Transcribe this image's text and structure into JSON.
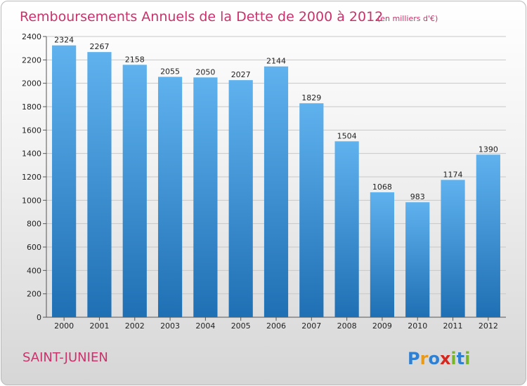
{
  "chart_data": {
    "type": "bar",
    "title": "Remboursements Annuels de la Dette de 2000 à 2012",
    "subtitle": "(en milliers d'€)",
    "categories": [
      "2000",
      "2001",
      "2002",
      "2003",
      "2004",
      "2005",
      "2006",
      "2007",
      "2008",
      "2009",
      "2010",
      "2011",
      "2012"
    ],
    "values": [
      2324,
      2267,
      2158,
      2055,
      2050,
      2027,
      2144,
      1829,
      1504,
      1068,
      983,
      1174,
      1390
    ],
    "ylim": [
      0,
      2400
    ],
    "yticks": [
      0,
      200,
      400,
      600,
      800,
      1000,
      1200,
      1400,
      1600,
      1800,
      2000,
      2200,
      2400
    ],
    "grid": true,
    "bar_color": "#3a8fd4"
  },
  "commune": "SAINT-JUNIEN",
  "brand": {
    "letters": [
      "P",
      "r",
      "o",
      "x",
      "i",
      "t",
      "i"
    ],
    "colors": [
      "#2f7fd2",
      "#e89a1a",
      "#2f7fd2",
      "#d6271f",
      "#78b52a",
      "#2f7fd2",
      "#78b52a"
    ]
  },
  "colors": {
    "title": "#c8336b",
    "grid": "#c8c8c8"
  }
}
